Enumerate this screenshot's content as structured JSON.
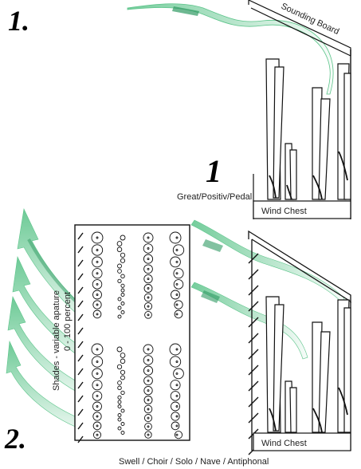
{
  "labels": {
    "section_one": "1.",
    "section_two": "2.",
    "great_number": "1",
    "sounding_board": "Sounding Board",
    "great_division": "Great/Positiv/Pedal",
    "wind_chest_top": "Wind Chest",
    "wind_chest_bottom": "Wind Chest",
    "shades": "Shades - variable apature",
    "shades_percent": "0 - 100 percent",
    "swell_divisions": "Swell / Choir / Solo / Nave / Antiphonal"
  },
  "colors": {
    "sound_green": "#5cc48a",
    "sound_green_dark": "#2f9a62",
    "line": "#111111"
  }
}
